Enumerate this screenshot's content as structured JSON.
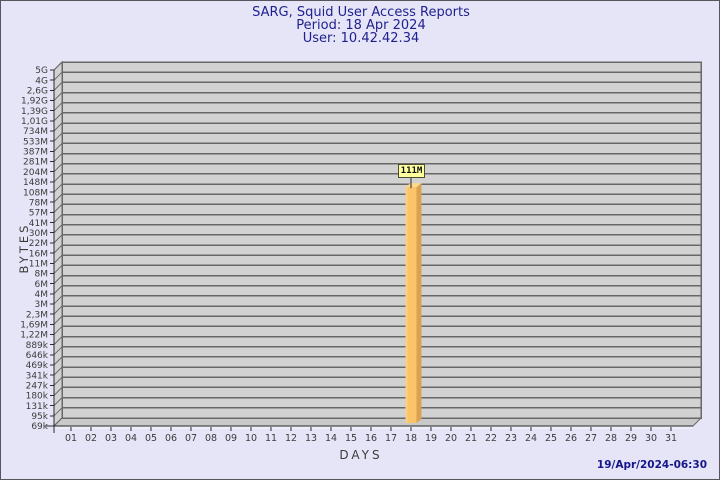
{
  "chart_data": {
    "type": "bar",
    "style": "3d",
    "title": "SARG, Squid User Access Reports",
    "subtitle_lines": [
      "Period: 18 Apr 2024",
      "User: 10.42.42.34"
    ],
    "xlabel": "DAYS",
    "ylabel": "BYTES",
    "grid": "horizontal",
    "categories": [
      "01",
      "02",
      "03",
      "04",
      "05",
      "06",
      "07",
      "08",
      "09",
      "10",
      "11",
      "12",
      "13",
      "14",
      "15",
      "16",
      "17",
      "18",
      "19",
      "20",
      "21",
      "22",
      "23",
      "24",
      "25",
      "26",
      "27",
      "28",
      "29",
      "30",
      "31"
    ],
    "values": [
      0,
      0,
      0,
      0,
      0,
      0,
      0,
      0,
      0,
      0,
      0,
      0,
      0,
      0,
      0,
      0,
      0,
      111000000,
      0,
      0,
      0,
      0,
      0,
      0,
      0,
      0,
      0,
      0,
      0,
      0,
      0
    ],
    "unit": "bytes",
    "data_labels": {
      "18": "111M"
    },
    "y_axis": {
      "scale": "log",
      "tick_labels": [
        "5G",
        "4G",
        "2,6G",
        "1,92G",
        "1,39G",
        "1,01G",
        "734M",
        "533M",
        "387M",
        "281M",
        "204M",
        "148M",
        "108M",
        "78M",
        "57M",
        "41M",
        "30M",
        "22M",
        "16M",
        "11M",
        "8M",
        "6M",
        "4M",
        "3M",
        "2,3M",
        "1,69M",
        "1,22M",
        "889k",
        "646k",
        "469k",
        "341k",
        "247k",
        "180k",
        "131k",
        "95k",
        "69k"
      ]
    }
  },
  "footer": {
    "generated": "19/Apr/2024-06:30"
  },
  "colors": {
    "background": "#e5e5f7",
    "border": "#55555e",
    "title": "#1f1f8f",
    "axis_text": "#3c3c3c",
    "axis_line": "#2a2a2a",
    "wall": "#d2d2d2",
    "floor": "#c9c9c9",
    "grid": "#686868",
    "bar_face": "#fcc46a",
    "bar_side": "#d9a150",
    "bar_top": "#fdd98c",
    "bar_highlight": "#fdd081",
    "value_box_bg": "#ffff9e",
    "value_box_border": "#4c4c34",
    "timestamp": "#16168b"
  }
}
